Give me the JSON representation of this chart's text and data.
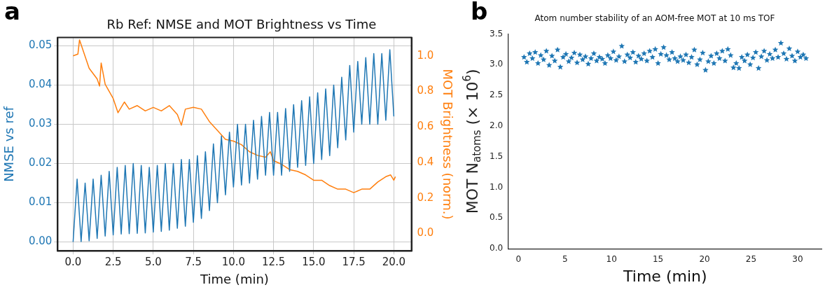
{
  "chart_data": [
    {
      "type": "line",
      "title": "Rb Ref: NMSE and MOT Brightness vs Time",
      "xlabel": "Time (min)",
      "ylabel": "NMSE vs ref",
      "y2label": "MOT Brightness (norm.)",
      "annotations": [
        "a"
      ],
      "grid": true,
      "legend": false,
      "marker": "none",
      "line_style": "solid",
      "xlim": [
        -0.96,
        21.1
      ],
      "xticks": [
        {
          "value": 0,
          "label": "0.0"
        },
        {
          "value": 2.5,
          "label": "2.5"
        },
        {
          "value": 5,
          "label": "5.0"
        },
        {
          "value": 7.5,
          "label": "7.5"
        },
        {
          "value": 10,
          "label": "10.0"
        },
        {
          "value": 12.5,
          "label": "12.5"
        },
        {
          "value": 15,
          "label": "15.0"
        },
        {
          "value": 17.5,
          "label": "17.5"
        },
        {
          "value": 20,
          "label": "20.0"
        }
      ],
      "ylim": [
        -0.0023,
        0.0521
      ],
      "yticks": [
        {
          "value": 0,
          "label": "0.00"
        },
        {
          "value": 0.01,
          "label": "0.01"
        },
        {
          "value": 0.02,
          "label": "0.02"
        },
        {
          "value": 0.03,
          "label": "0.03"
        },
        {
          "value": 0.04,
          "label": "0.04"
        },
        {
          "value": 0.05,
          "label": "0.05"
        }
      ],
      "y2lim": [
        -0.098,
        1.103
      ],
      "y2ticks": [
        {
          "value": 0,
          "label": "0.0"
        },
        {
          "value": 0.2,
          "label": "0.2"
        },
        {
          "value": 0.4,
          "label": "0.4"
        },
        {
          "value": 0.6,
          "label": "0.6"
        },
        {
          "value": 0.8,
          "label": "0.8"
        },
        {
          "value": 1,
          "label": "1.0"
        }
      ],
      "series": [
        {
          "color": "#1f77b4",
          "x": [
            0,
            0.25,
            0.5,
            0.75,
            1,
            1.25,
            1.5,
            1.75,
            2,
            2.25,
            2.5,
            2.75,
            3,
            3.25,
            3.5,
            3.75,
            4,
            4.25,
            4.5,
            4.75,
            5,
            5.25,
            5.5,
            5.75,
            6,
            6.25,
            6.5,
            6.75,
            7,
            7.25,
            7.5,
            7.75,
            8,
            8.25,
            8.5,
            8.75,
            9,
            9.25,
            9.5,
            9.75,
            10,
            10.25,
            10.5,
            10.75,
            11,
            11.25,
            11.5,
            11.75,
            12,
            12.25,
            12.5,
            12.75,
            13,
            13.25,
            13.5,
            13.75,
            14,
            14.25,
            14.5,
            14.75,
            15,
            15.25,
            15.5,
            15.75,
            16,
            16.25,
            16.5,
            16.75,
            17,
            17.25,
            17.5,
            17.75,
            18,
            18.25,
            18.5,
            18.75,
            19,
            19.25,
            19.5,
            19.75,
            20
          ],
          "values": [
            0,
            0.016,
            0.0001,
            0.015,
            0.0003,
            0.016,
            0.0009,
            0.017,
            0.0015,
            0.018,
            0.0018,
            0.019,
            0.002,
            0.0195,
            0.0021,
            0.02,
            0.0022,
            0.0195,
            0.0023,
            0.019,
            0.0025,
            0.0195,
            0.0027,
            0.02,
            0.003,
            0.02,
            0.0035,
            0.021,
            0.004,
            0.021,
            0.005,
            0.022,
            0.006,
            0.023,
            0.008,
            0.025,
            0.01,
            0.027,
            0.012,
            0.028,
            0.014,
            0.03,
            0.0145,
            0.03,
            0.015,
            0.031,
            0.016,
            0.032,
            0.017,
            0.033,
            0.017,
            0.033,
            0.017,
            0.034,
            0.018,
            0.035,
            0.019,
            0.036,
            0.0195,
            0.037,
            0.02,
            0.038,
            0.021,
            0.039,
            0.022,
            0.04,
            0.024,
            0.042,
            0.026,
            0.045,
            0.028,
            0.046,
            0.03,
            0.047,
            0.03,
            0.048,
            0.03,
            0.048,
            0.031,
            0.049,
            0.032
          ]
        },
        {
          "color": "#ff7f0e",
          "axis": "y2",
          "x": [
            0,
            0.3,
            0.4,
            1,
            1.5,
            1.65,
            1.75,
            2,
            2.5,
            2.8,
            3.2,
            3.5,
            4,
            4.5,
            5,
            5.5,
            6,
            6.5,
            6.75,
            7,
            7.5,
            8,
            8.5,
            9,
            9.5,
            10,
            10.5,
            11,
            11.5,
            12,
            12.3,
            12.5,
            13,
            13.5,
            14,
            14.5,
            15,
            15.5,
            16,
            16.5,
            17,
            17.5,
            18,
            18.5,
            19,
            19.5,
            19.8,
            20,
            20.1
          ],
          "values": [
            1.0,
            1.01,
            1.09,
            0.93,
            0.87,
            0.83,
            0.96,
            0.84,
            0.76,
            0.68,
            0.74,
            0.7,
            0.72,
            0.69,
            0.71,
            0.69,
            0.72,
            0.67,
            0.61,
            0.7,
            0.71,
            0.7,
            0.63,
            0.58,
            0.53,
            0.52,
            0.5,
            0.46,
            0.44,
            0.43,
            0.46,
            0.41,
            0.39,
            0.36,
            0.35,
            0.33,
            0.3,
            0.3,
            0.27,
            0.25,
            0.25,
            0.23,
            0.25,
            0.25,
            0.29,
            0.32,
            0.33,
            0.3,
            0.32
          ]
        }
      ]
    },
    {
      "type": "scatter",
      "title": "Atom number stability of an AOM-free MOT at 10 ms TOF",
      "xlabel": "Time (min)",
      "ylabel": "MOT N$_{atoms}$ (× 10$^{6}$)",
      "annotations": [
        "b"
      ],
      "legend": false,
      "marker": "star",
      "xlim": [
        -1.07,
        32.6
      ],
      "xticks": [
        0,
        5,
        10,
        15,
        20,
        25,
        30
      ],
      "ylim": [
        0,
        3.5
      ],
      "yticks": [
        {
          "value": 0,
          "label": "0.0"
        },
        {
          "value": 0.5,
          "label": "0.5"
        },
        {
          "value": 1,
          "label": "1.0"
        },
        {
          "value": 1.5,
          "label": "1.5"
        },
        {
          "value": 2,
          "label": "2.0"
        },
        {
          "value": 2.5,
          "label": "2.5"
        },
        {
          "value": 3,
          "label": "3.0"
        },
        {
          "value": 3.5,
          "label": "3.5"
        }
      ],
      "series": [
        {
          "color": "#1f77b4",
          "x": [
            0.6,
            0.9,
            1.2,
            1.5,
            1.8,
            2.1,
            2.4,
            2.7,
            3.0,
            3.3,
            3.6,
            3.9,
            4.2,
            4.5,
            4.8,
            5.1,
            5.4,
            5.7,
            6.0,
            6.3,
            6.6,
            6.9,
            7.2,
            7.5,
            7.8,
            8.1,
            8.4,
            8.7,
            9.0,
            9.3,
            9.6,
            9.9,
            10.2,
            10.5,
            10.8,
            11.1,
            11.4,
            11.7,
            12.0,
            12.3,
            12.6,
            12.9,
            13.2,
            13.5,
            13.8,
            14.1,
            14.4,
            14.7,
            15.0,
            15.3,
            15.6,
            15.9,
            16.2,
            16.5,
            16.8,
            17.1,
            17.4,
            17.7,
            18.0,
            18.3,
            18.6,
            18.9,
            19.2,
            19.5,
            19.8,
            20.1,
            20.4,
            20.7,
            21.0,
            21.3,
            21.6,
            21.9,
            22.2,
            22.5,
            22.8,
            23.1,
            23.4,
            23.7,
            24.0,
            24.3,
            24.6,
            24.9,
            25.2,
            25.5,
            25.8,
            26.1,
            26.4,
            26.7,
            27.0,
            27.3,
            27.6,
            27.9,
            28.2,
            28.5,
            28.8,
            29.1,
            29.4,
            29.7,
            30.0,
            30.3,
            30.6,
            30.9
          ],
          "values": [
            3.12,
            3.04,
            3.18,
            3.1,
            3.2,
            3.02,
            3.15,
            3.08,
            3.22,
            2.99,
            3.14,
            3.06,
            3.24,
            2.96,
            3.12,
            3.17,
            3.05,
            3.11,
            3.19,
            3.03,
            3.16,
            3.08,
            3.13,
            3.01,
            3.1,
            3.18,
            3.06,
            3.12,
            3.09,
            3.02,
            3.15,
            3.1,
            3.21,
            3.07,
            3.13,
            3.3,
            3.05,
            3.16,
            3.11,
            3.2,
            3.04,
            3.14,
            3.09,
            3.18,
            3.06,
            3.22,
            3.12,
            3.25,
            3.02,
            3.17,
            3.28,
            3.15,
            3.08,
            3.2,
            3.1,
            3.05,
            3.13,
            3.07,
            3.16,
            3.03,
            3.12,
            3.24,
            3.0,
            3.08,
            3.19,
            2.91,
            3.05,
            3.14,
            3.02,
            3.18,
            3.1,
            3.22,
            3.06,
            3.25,
            3.15,
            2.95,
            3.02,
            2.94,
            3.12,
            3.06,
            3.16,
            3.0,
            3.11,
            3.2,
            2.94,
            3.13,
            3.22,
            3.07,
            3.17,
            3.1,
            3.24,
            3.12,
            3.35,
            3.18,
            3.09,
            3.26,
            3.14,
            3.06,
            3.21,
            3.12,
            3.16,
            3.1
          ]
        }
      ]
    }
  ]
}
